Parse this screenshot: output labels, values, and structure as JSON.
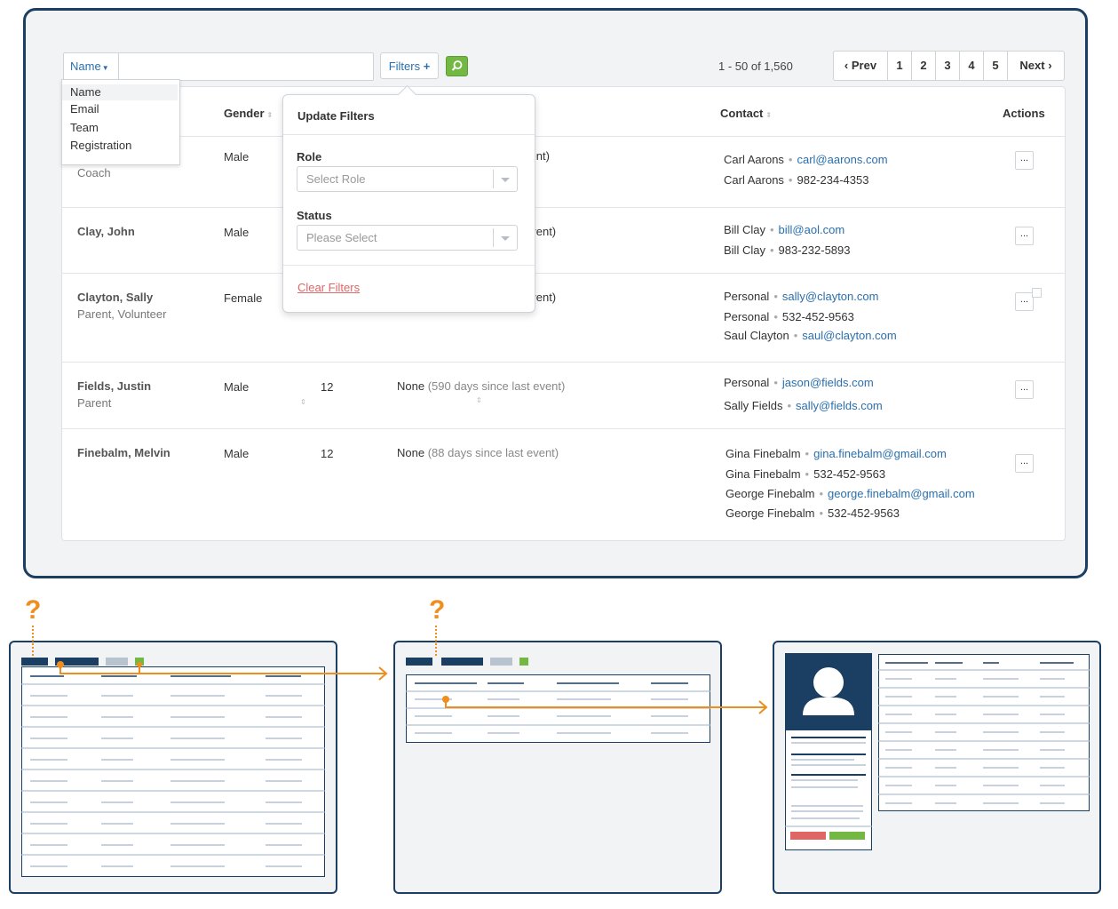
{
  "search": {
    "field_label": "Name",
    "input_value": "",
    "filters_label": "Filters",
    "filters_glyph": "+"
  },
  "field_menu": [
    "Name",
    "Email",
    "Team",
    "Registration"
  ],
  "pagination": {
    "range_text": "1 - 50  of 1,560",
    "prev": "Prev",
    "next": "Next",
    "pages": [
      "1",
      "2",
      "3",
      "4",
      "5"
    ]
  },
  "table": {
    "headers": {
      "gender": "Gender",
      "contact": "Contact",
      "actions": "Actions"
    },
    "rows": [
      {
        "name": "",
        "sub": "Coach",
        "gender": "Male",
        "age": "",
        "last": "vent)",
        "last_muted": "",
        "contacts": [
          {
            "label": "Carl Aarons",
            "value": "carl@aarons.com",
            "link": true
          },
          {
            "label": "Carl Aarons",
            "value": "982-234-4353",
            "link": false
          }
        ]
      },
      {
        "name": "Clay, John",
        "sub": "",
        "gender": "Male",
        "age": "",
        "last": "event)",
        "last_muted": "",
        "contacts": [
          {
            "label": "Bill Clay",
            "value": "bill@aol.com",
            "link": true
          },
          {
            "label": "Bill Clay",
            "value": "983-232-5893",
            "link": false
          }
        ]
      },
      {
        "name": "Clayton, Sally",
        "sub": "Parent, Volunteer",
        "gender": "Female",
        "age": "",
        "last": "event)",
        "last_muted": "",
        "contacts": [
          {
            "label": "Personal",
            "value": "sally@clayton.com",
            "link": true
          },
          {
            "label": "Personal",
            "value": "532-452-9563",
            "link": false
          },
          {
            "label": "Saul Clayton",
            "value": "saul@clayton.com",
            "link": true
          }
        ]
      },
      {
        "name": "Fields, Justin",
        "sub": "Parent",
        "gender": "Male",
        "age": "12",
        "last": "None",
        "last_muted": "(590 days since last event)",
        "contacts": [
          {
            "label": "Personal",
            "value": "jason@fields.com",
            "link": true
          },
          {
            "label": "Sally Fields",
            "value": "sally@fields.com",
            "link": true
          }
        ]
      },
      {
        "name": "Finebalm, Melvin",
        "sub": "",
        "gender": "Male",
        "age": "12",
        "last": "None",
        "last_muted": "(88 days since last event)",
        "contacts": [
          {
            "label": "Gina Finebalm",
            "value": "gina.finebalm@gmail.com",
            "link": true
          },
          {
            "label": "Gina Finebalm",
            "value": "532-452-9563",
            "link": false
          },
          {
            "label": "George Finebalm",
            "value": "george.finebalm@gmail.com",
            "link": true
          },
          {
            "label": "George Finebalm",
            "value": "532-452-9563",
            "link": false
          }
        ]
      }
    ],
    "action_glyph": "..."
  },
  "filters_popover": {
    "title": "Update Filters",
    "role_label": "Role",
    "role_placeholder": "Select Role",
    "status_label": "Status",
    "status_placeholder": "Please Select",
    "clear_label": "Clear Filters"
  },
  "diagram": {
    "question_mark": "?"
  },
  "colors": {
    "navy": "#1b3f63",
    "link": "#2a6fae",
    "green": "#73b843",
    "orange": "#ee8e1f",
    "red": "#e06565"
  }
}
